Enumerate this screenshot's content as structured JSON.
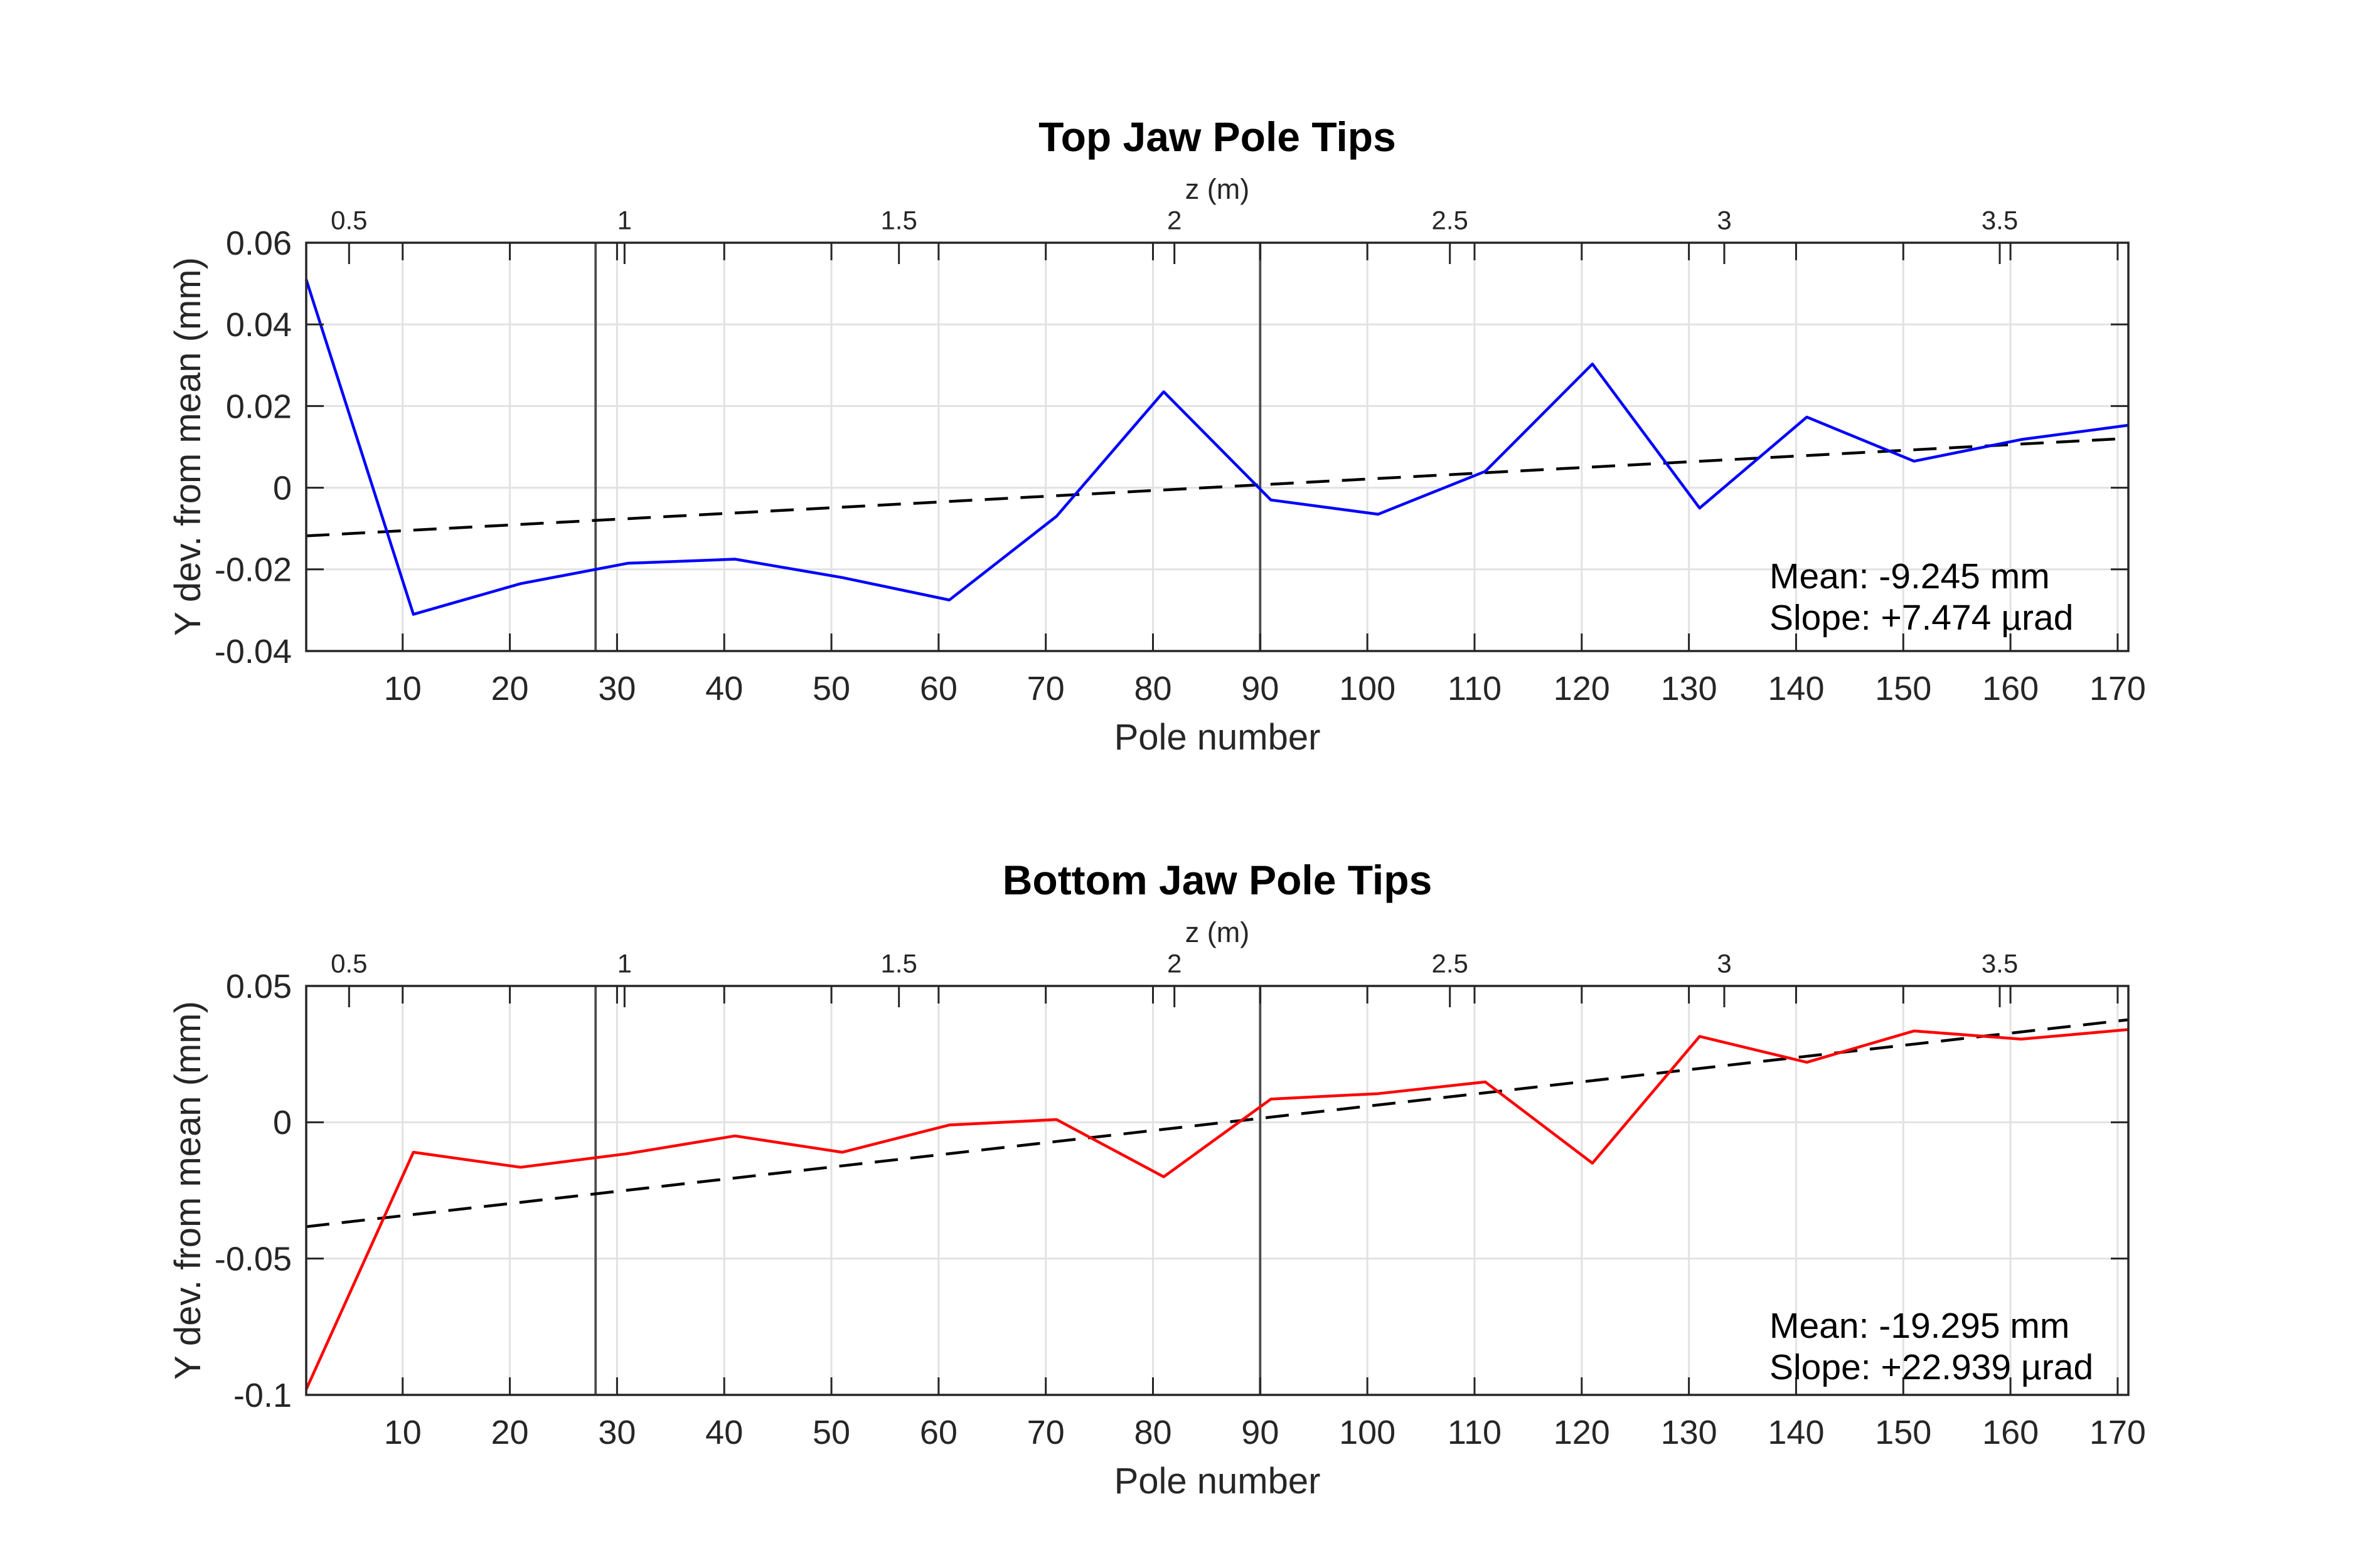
{
  "figure": {
    "background": "#ffffff"
  },
  "chart_data": [
    {
      "type": "line",
      "title": "Top Jaw Pole Tips",
      "xlabel": "Pole number",
      "ylabel": "Y dev. from mean (mm)",
      "top_axis": {
        "label": "z (m)",
        "ticks": [
          "0.5",
          "1",
          "1.5",
          "2",
          "2.5",
          "3",
          "3.5"
        ],
        "tick_pole_positions": [
          5.0,
          30.7,
          56.3,
          82.0,
          107.7,
          133.3,
          159.0
        ]
      },
      "xlim": [
        1,
        171
      ],
      "ylim": [
        -0.04,
        0.06
      ],
      "xticks": [
        10,
        20,
        30,
        40,
        50,
        60,
        70,
        80,
        90,
        100,
        110,
        120,
        130,
        140,
        150,
        160,
        170
      ],
      "yticks": [
        0.06,
        0.04,
        0.02,
        0,
        -0.02,
        -0.04
      ],
      "ytick_labels": [
        "0.06",
        "0.04",
        "0.02",
        "0",
        "-0.02",
        "-0.04"
      ],
      "grid": true,
      "series": [
        {
          "name": "top-jaw-deviation",
          "color": "#0000ff",
          "x": [
            1,
            11,
            21,
            31,
            41,
            51,
            61,
            71,
            81,
            91,
            101,
            111,
            121,
            131,
            141,
            151,
            161,
            171
          ],
          "y": [
            0.051,
            -0.031,
            -0.0235,
            -0.0185,
            -0.0175,
            -0.022,
            -0.0275,
            -0.007,
            0.0235,
            -0.003,
            -0.0065,
            0.004,
            0.0303,
            -0.005,
            0.0173,
            0.0065,
            0.0118,
            0.0153
          ]
        }
      ],
      "trend_line": {
        "name": "linear-fit",
        "color": "#000000",
        "dashed": true,
        "x": [
          1,
          171
        ],
        "y": [
          -0.0118,
          0.0121
        ]
      },
      "vlines": {
        "name": "girder-markers",
        "color": "#4d4d4d",
        "poles": [
          28,
          90
        ]
      },
      "annotation": {
        "line1": "Mean: -9.245 mm",
        "line2": "Slope: +7.474 µrad"
      }
    },
    {
      "type": "line",
      "title": "Bottom Jaw Pole Tips",
      "xlabel": "Pole number",
      "ylabel": "Y dev. from mean (mm)",
      "top_axis": {
        "label": "z (m)",
        "ticks": [
          "0.5",
          "1",
          "1.5",
          "2",
          "2.5",
          "3",
          "3.5"
        ],
        "tick_pole_positions": [
          5.0,
          30.7,
          56.3,
          82.0,
          107.7,
          133.3,
          159.0
        ]
      },
      "xlim": [
        1,
        171
      ],
      "ylim": [
        -0.1,
        0.05
      ],
      "xticks": [
        10,
        20,
        30,
        40,
        50,
        60,
        70,
        80,
        90,
        100,
        110,
        120,
        130,
        140,
        150,
        160,
        170
      ],
      "yticks": [
        0.05,
        0,
        -0.05,
        -0.1
      ],
      "ytick_labels": [
        "0.05",
        "0",
        "-0.05",
        "-0.1"
      ],
      "grid": true,
      "series": [
        {
          "name": "bottom-jaw-deviation",
          "color": "#ff0000",
          "x": [
            1,
            11,
            21,
            31,
            41,
            51,
            61,
            71,
            81,
            91,
            101,
            111,
            121,
            131,
            141,
            151,
            161,
            171
          ],
          "y": [
            -0.098,
            -0.011,
            -0.0165,
            -0.0115,
            -0.005,
            -0.011,
            -0.001,
            0.001,
            -0.02,
            0.0085,
            0.0105,
            0.0148,
            -0.015,
            0.0315,
            0.022,
            0.0335,
            0.0305,
            0.034
          ]
        }
      ],
      "trend_line": {
        "name": "linear-fit",
        "color": "#000000",
        "dashed": true,
        "x": [
          1,
          171
        ],
        "y": [
          -0.0383,
          0.0376
        ]
      },
      "vlines": {
        "name": "girder-markers",
        "color": "#4d4d4d",
        "poles": [
          28,
          90
        ]
      },
      "annotation": {
        "line1": "Mean: -19.295 mm",
        "line2": "Slope: +22.939 µrad"
      }
    }
  ]
}
